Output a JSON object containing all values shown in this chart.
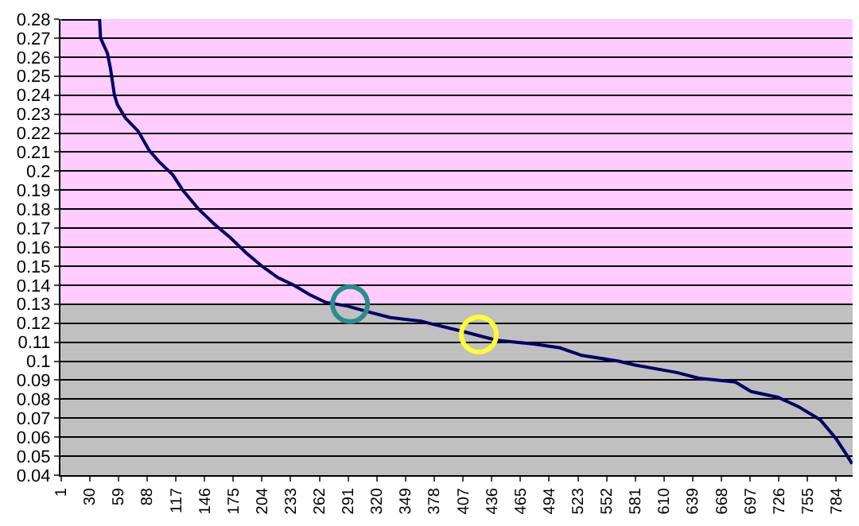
{
  "chart_data": {
    "type": "line",
    "x": [
      1,
      40,
      41,
      48,
      51,
      55,
      58,
      66,
      79,
      90,
      100,
      114,
      124,
      140,
      156,
      172,
      188,
      204,
      220,
      236,
      252,
      268,
      290,
      311,
      333,
      365,
      372,
      404,
      441,
      479,
      505,
      527,
      564,
      580,
      623,
      645,
      682,
      698,
      725,
      746,
      768,
      784,
      794,
      800
    ],
    "series": [
      {
        "color": "#000066",
        "marker": "none",
        "values": [
          0.28,
          0.28,
          0.27,
          0.262,
          0.254,
          0.24,
          0.235,
          0.228,
          0.221,
          0.211,
          0.205,
          0.198,
          0.19,
          0.18,
          0.172,
          0.165,
          0.157,
          0.15,
          0.144,
          0.14,
          0.135,
          0.131,
          0.129,
          0.126,
          0.123,
          0.121,
          0.12,
          0.116,
          0.111,
          0.109,
          0.107,
          0.103,
          0.1,
          0.098,
          0.094,
          0.091,
          0.089,
          0.084,
          0.081,
          0.076,
          0.069,
          0.059,
          0.051,
          0.046
        ]
      },
      {
        "type": "scatter",
        "color": "#2a8c8c",
        "marker": "circle",
        "x": [
          293
        ],
        "values": [
          0.13
        ]
      },
      {
        "type": "scatter",
        "color": "#ffff33",
        "marker": "circle",
        "x": [
          423
        ],
        "values": [
          0.114
        ]
      }
    ],
    "xlim": [
      0.5,
      800.5
    ],
    "xticks": [
      1,
      30,
      59,
      88,
      117,
      146,
      175,
      204,
      233,
      262,
      291,
      320,
      349,
      378,
      407,
      436,
      465,
      494,
      523,
      552,
      581,
      610,
      639,
      668,
      697,
      726,
      755,
      784
    ],
    "ylim": [
      0.04,
      0.28
    ],
    "yticks": [
      0.04,
      0.05,
      0.06,
      0.07,
      0.08,
      0.09,
      0.1,
      0.11,
      0.12,
      0.13,
      0.14,
      0.15,
      0.16,
      0.17,
      0.18,
      0.19,
      0.2,
      0.21,
      0.22,
      0.23,
      0.24,
      0.25,
      0.26,
      0.27,
      0.28
    ],
    "bands": [
      {
        "axis": "y",
        "from": 0.13,
        "to": 0.28,
        "color": "#ffccff"
      },
      {
        "axis": "y",
        "from": 0.04,
        "to": 0.13,
        "color": "#c0c0c0"
      }
    ],
    "grid": "y"
  }
}
